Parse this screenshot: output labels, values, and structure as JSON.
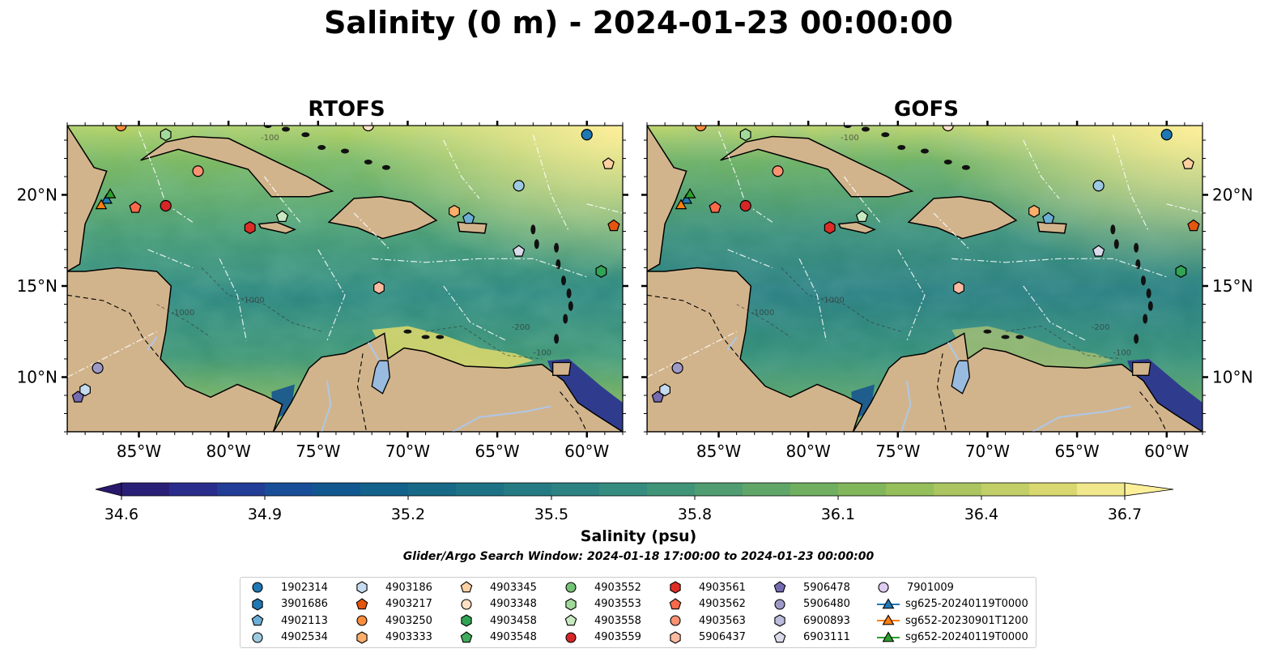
{
  "title": "Salinity (0 m) - 2024-01-23 00:00:00",
  "panels": [
    {
      "title": "RTOFS",
      "variant": "rtofs"
    },
    {
      "title": "GOFS",
      "variant": "gofs"
    }
  ],
  "map": {
    "lon_range": [
      -89.0,
      -58.0
    ],
    "lat_range": [
      7.0,
      23.8
    ],
    "lon_ticks": [
      "85°W",
      "80°W",
      "75°W",
      "70°W",
      "65°W",
      "60°W"
    ],
    "lon_tick_values": [
      -85,
      -80,
      -75,
      -70,
      -65,
      -60
    ],
    "lat_ticks": [
      "20°N",
      "15°N",
      "10°N"
    ],
    "lat_tick_values": [
      20,
      15,
      10
    ],
    "contour_labels": [
      "-100",
      "-1000",
      "-200",
      "-1000",
      "-100"
    ],
    "land_color": "#d2b48c",
    "lake_color": "#99bbe0",
    "river_color": "#aec7e8"
  },
  "colorbar": {
    "label": "Salinity (psu)",
    "ticks": [
      "34.6",
      "34.9",
      "35.2",
      "35.5",
      "35.8",
      "36.1",
      "36.4",
      "36.7"
    ],
    "range": [
      34.6,
      36.7
    ],
    "colormap": "haline",
    "stops": [
      "#2a186c",
      "#2a2d8e",
      "#1a4b9a",
      "#0e5c8e",
      "#176a87",
      "#227784",
      "#2e8581",
      "#3d937a",
      "#56a16d",
      "#71ae60",
      "#8ebc58",
      "#b1c862",
      "#d6d56c",
      "#fdef9a"
    ]
  },
  "search_window": "Glider/Argo Search Window: 2024-01-18 17:00:00 to 2024-01-23 00:00:00",
  "platforms": [
    {
      "id": "1902314",
      "marker": "circle",
      "color": "#1f77b4",
      "lon": -60.0,
      "lat": 23.3
    },
    {
      "id": "3901686",
      "marker": "hexagon",
      "color": "#1f77b4",
      "lon": null,
      "lat": null
    },
    {
      "id": "4902113",
      "marker": "pentagon",
      "color": "#6baed6",
      "lon": -66.6,
      "lat": 18.7
    },
    {
      "id": "4902534",
      "marker": "circle",
      "color": "#9ecae1",
      "lon": -63.8,
      "lat": 20.5
    },
    {
      "id": "4903186",
      "marker": "hexagon",
      "color": "#c6dbef",
      "lon": -88.0,
      "lat": 9.3
    },
    {
      "id": "4903217",
      "marker": "pentagon",
      "color": "#e6550d",
      "lon": -58.5,
      "lat": 18.3
    },
    {
      "id": "4903250",
      "marker": "circle",
      "color": "#fd8d3c",
      "lon": -86.0,
      "lat": 23.8
    },
    {
      "id": "4903333",
      "marker": "hexagon",
      "color": "#fdae6b",
      "lon": -67.4,
      "lat": 19.1
    },
    {
      "id": "4903345",
      "marker": "pentagon",
      "color": "#fdd0a2",
      "lon": -58.8,
      "lat": 21.7
    },
    {
      "id": "4903348",
      "marker": "circle",
      "color": "#fde0c5",
      "lon": -72.2,
      "lat": 23.8
    },
    {
      "id": "4903458",
      "marker": "hexagon",
      "color": "#31a354",
      "lon": -59.2,
      "lat": 15.8
    },
    {
      "id": "4903548",
      "marker": "pentagon",
      "color": "#41ab5d",
      "lon": null,
      "lat": null
    },
    {
      "id": "4903552",
      "marker": "circle",
      "color": "#74c476",
      "lon": null,
      "lat": null
    },
    {
      "id": "4903553",
      "marker": "hexagon",
      "color": "#a1d99b",
      "lon": -83.5,
      "lat": 23.3
    },
    {
      "id": "4903558",
      "marker": "pentagon",
      "color": "#c7e9c0",
      "lon": -77.0,
      "lat": 18.8
    },
    {
      "id": "4903559",
      "marker": "circle",
      "color": "#d62728",
      "lon": -83.5,
      "lat": 19.4
    },
    {
      "id": "4903561",
      "marker": "hexagon",
      "color": "#de2d26",
      "lon": -78.8,
      "lat": 18.2
    },
    {
      "id": "4903562",
      "marker": "pentagon",
      "color": "#fb6a4a",
      "lon": -85.2,
      "lat": 19.3
    },
    {
      "id": "4903563",
      "marker": "circle",
      "color": "#fc9272",
      "lon": -81.7,
      "lat": 21.3
    },
    {
      "id": "5906437",
      "marker": "hexagon",
      "color": "#fcbba1",
      "lon": -71.6,
      "lat": 14.9
    },
    {
      "id": "5906478",
      "marker": "pentagon",
      "color": "#756bb1",
      "lon": -88.4,
      "lat": 8.9
    },
    {
      "id": "5906480",
      "marker": "circle",
      "color": "#9e9ac8",
      "lon": -87.3,
      "lat": 10.5
    },
    {
      "id": "6900893",
      "marker": "hexagon",
      "color": "#bcbddc",
      "lon": null,
      "lat": null
    },
    {
      "id": "6903111",
      "marker": "pentagon",
      "color": "#dadaeb",
      "lon": -63.8,
      "lat": 16.9
    },
    {
      "id": "7901009",
      "marker": "circle",
      "color": "#e0ccf0",
      "lon": null,
      "lat": null
    },
    {
      "id": "sg625-20240119T0000",
      "marker": "triangle",
      "color": "#1f77b4",
      "lon": -86.8,
      "lat": 19.7
    },
    {
      "id": "sg652-20230901T1200",
      "marker": "triangle",
      "color": "#ff7f0e",
      "lon": -87.1,
      "lat": 19.4
    },
    {
      "id": "sg652-20240119T0000",
      "marker": "triangle",
      "color": "#2ca02c",
      "lon": -86.6,
      "lat": 20.0
    }
  ]
}
